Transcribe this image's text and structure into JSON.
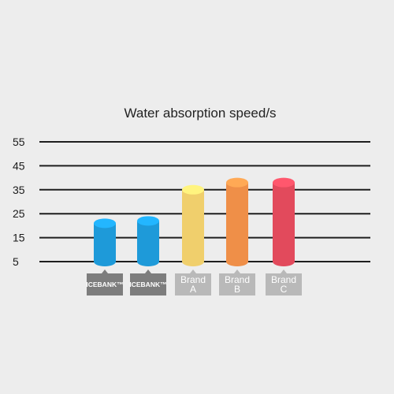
{
  "chart_data": {
    "type": "bar",
    "title": "Water absorption speed/s",
    "xlabel": "",
    "ylabel": "",
    "ylim": [
      5,
      55
    ],
    "yticks": [
      55,
      45,
      35,
      25,
      15,
      5
    ],
    "categories": [
      "ICEBANK™",
      "ICEBANK™",
      "Brand A",
      "Brand B",
      "Brand C"
    ],
    "category_lines": [
      [
        "ICEBANK™"
      ],
      [
        "ICEBANK™"
      ],
      [
        "Brand",
        "A"
      ],
      [
        "Brand",
        "B"
      ],
      [
        "Brand",
        "C"
      ]
    ],
    "values": [
      21,
      22,
      35,
      38,
      38
    ],
    "bar_colors": [
      "#1e9ad9",
      "#1e9ad9",
      "#f0cf6c",
      "#ef8f48",
      "#e24a5c"
    ],
    "label_colors": [
      "#7d7d7d",
      "#7d7d7d",
      "#b9b9b9",
      "#b9b9b9",
      "#b9b9b9"
    ],
    "grid": true,
    "legend": "none"
  }
}
